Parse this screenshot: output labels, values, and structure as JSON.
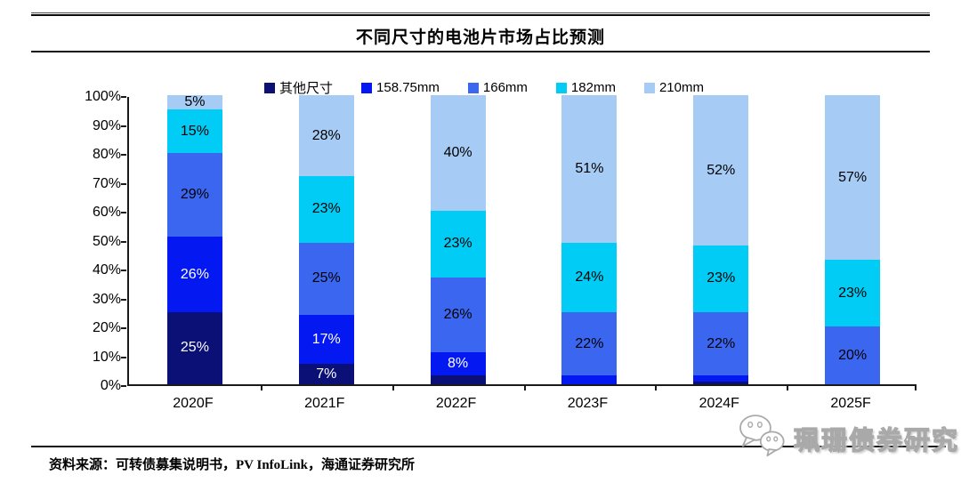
{
  "header": {
    "title": "不同尺寸的电池片市场占比预测"
  },
  "chart_data": {
    "type": "bar",
    "stacked": true,
    "title": "不同尺寸的电池片市场占比预测",
    "categories": [
      "2020F",
      "2021F",
      "2022F",
      "2023F",
      "2024F",
      "2025F"
    ],
    "series": [
      {
        "name": "其他尺寸",
        "color": "#0b1077",
        "label_color": "#ffffff",
        "values": [
          25,
          7,
          3,
          0,
          1,
          0
        ]
      },
      {
        "name": "158.75mm",
        "color": "#0419f2",
        "label_color": "#ffffff",
        "values": [
          26,
          17,
          8,
          3,
          2,
          0
        ]
      },
      {
        "name": "166mm",
        "color": "#3b67f0",
        "label_color": "#000000",
        "values": [
          29,
          25,
          26,
          22,
          22,
          20
        ]
      },
      {
        "name": "182mm",
        "color": "#00ccf5",
        "label_color": "#000000",
        "values": [
          15,
          23,
          23,
          24,
          23,
          23
        ]
      },
      {
        "name": "210mm",
        "color": "#a6ccf5",
        "label_color": "#000000",
        "values": [
          5,
          28,
          40,
          51,
          52,
          57
        ]
      }
    ],
    "xlabel": "",
    "ylabel": "",
    "ylim": [
      0,
      100
    ],
    "ytick_step": 10,
    "ytick_suffix": "%",
    "data_label_suffix": "%",
    "min_label_value": 5,
    "legend_position": "top",
    "grid": false
  },
  "footer": {
    "source_label": "资料来源：",
    "source_text": "可转债募集说明书，PV InfoLink，海通证券研究所"
  },
  "watermark": {
    "text": "珮珊债券研究",
    "icon": "wechat-icon"
  }
}
